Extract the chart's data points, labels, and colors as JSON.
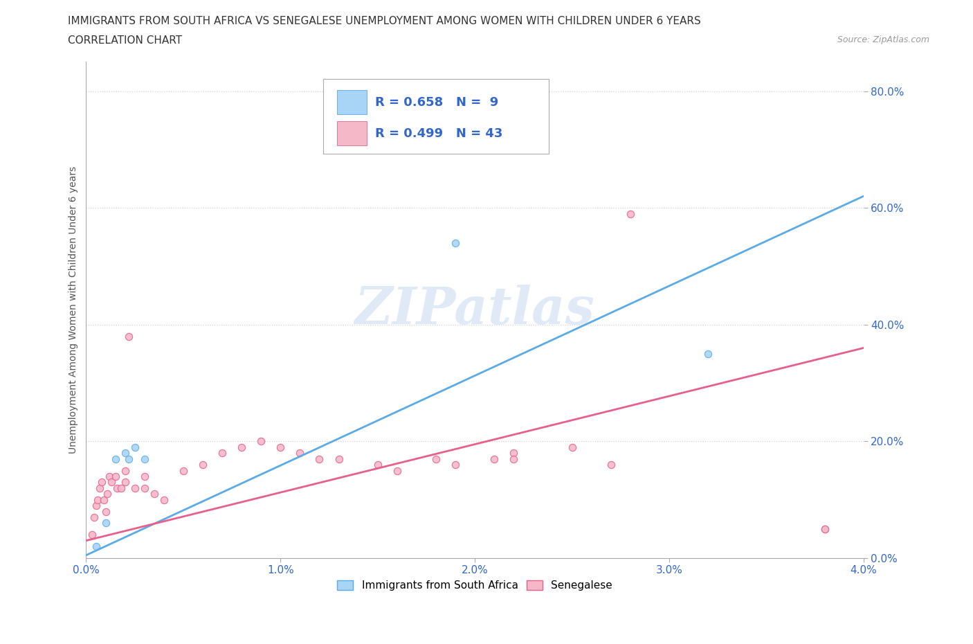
{
  "title_line1": "IMMIGRANTS FROM SOUTH AFRICA VS SENEGALESE UNEMPLOYMENT AMONG WOMEN WITH CHILDREN UNDER 6 YEARS",
  "title_line2": "CORRELATION CHART",
  "source": "Source: ZipAtlas.com",
  "watermark": "ZIPatlas",
  "ylabel": "Unemployment Among Women with Children Under 6 years",
  "xlim": [
    0.0,
    0.04
  ],
  "ylim": [
    0.0,
    0.85
  ],
  "x_ticks": [
    0.0,
    0.01,
    0.02,
    0.03,
    0.04
  ],
  "x_tick_labels": [
    "0.0%",
    "1.0%",
    "2.0%",
    "3.0%",
    "4.0%"
  ],
  "y_ticks": [
    0.0,
    0.2,
    0.4,
    0.6,
    0.8
  ],
  "y_tick_labels": [
    "0.0%",
    "20.0%",
    "40.0%",
    "60.0%",
    "80.0%"
  ],
  "blue_scatter_x": [
    0.0005,
    0.001,
    0.0015,
    0.002,
    0.0022,
    0.0025,
    0.003,
    0.019,
    0.032
  ],
  "blue_scatter_y": [
    0.02,
    0.06,
    0.17,
    0.18,
    0.17,
    0.19,
    0.17,
    0.54,
    0.35
  ],
  "pink_scatter_x": [
    0.0003,
    0.0004,
    0.0005,
    0.0006,
    0.0007,
    0.0008,
    0.0009,
    0.001,
    0.0011,
    0.0012,
    0.0013,
    0.0015,
    0.0016,
    0.0018,
    0.002,
    0.002,
    0.0022,
    0.0025,
    0.003,
    0.003,
    0.0035,
    0.004,
    0.005,
    0.006,
    0.007,
    0.008,
    0.009,
    0.01,
    0.011,
    0.012,
    0.013,
    0.015,
    0.016,
    0.018,
    0.019,
    0.021,
    0.022,
    0.025,
    0.027,
    0.038,
    0.028,
    0.022,
    0.038
  ],
  "pink_scatter_y": [
    0.04,
    0.07,
    0.09,
    0.1,
    0.12,
    0.13,
    0.1,
    0.08,
    0.11,
    0.14,
    0.13,
    0.14,
    0.12,
    0.12,
    0.13,
    0.15,
    0.38,
    0.12,
    0.14,
    0.12,
    0.11,
    0.1,
    0.15,
    0.16,
    0.18,
    0.19,
    0.2,
    0.19,
    0.18,
    0.17,
    0.17,
    0.16,
    0.15,
    0.17,
    0.16,
    0.17,
    0.18,
    0.19,
    0.16,
    0.05,
    0.59,
    0.17,
    0.05
  ],
  "blue_R": 0.658,
  "blue_N": 9,
  "pink_R": 0.499,
  "pink_N": 43,
  "blue_line_x": [
    0.0,
    0.04
  ],
  "blue_line_y": [
    0.005,
    0.62
  ],
  "pink_line_x": [
    0.0,
    0.04
  ],
  "pink_line_y": [
    0.03,
    0.36
  ],
  "blue_scatter_color": "#a8d4f5",
  "blue_edge_color": "#5baae8",
  "pink_scatter_color": "#f5b8c8",
  "pink_edge_color": "#e8608a",
  "blue_line_color": "#5baae8",
  "pink_line_color": "#e8608a",
  "scatter_size": 55,
  "background_color": "#ffffff",
  "grid_color": "#cccccc",
  "title_color": "#333333",
  "right_ytick_color": "#3366cc",
  "bottom_xtick_color": "#3366cc",
  "legend_text_color": "#3366cc",
  "axis_label_color": "#555555",
  "watermark_color": "#c8daf0"
}
